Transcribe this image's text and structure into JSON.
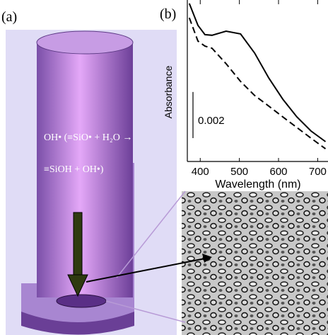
{
  "panel_labels": [
    "(a)",
    "(b)"
  ],
  "annotation": {
    "lines": [
      "OH• (≡SiO• + H₂O →",
      "≡SiOH + OH•)"
    ]
  },
  "chart_data": {
    "type": "line",
    "y_label": "Absorbance",
    "x_label": "Wavelength (nm)",
    "x": [
      372,
      394,
      412,
      430,
      466,
      503,
      539,
      575,
      611,
      647,
      683,
      720
    ],
    "series": [
      {
        "color": "#000000",
        "dash": "solid",
        "values": [
          0.00685,
          0.0059,
          0.0055,
          0.00547,
          0.00565,
          0.00553,
          0.0047,
          0.00362,
          0.0027,
          0.00193,
          0.00132,
          0.00086
        ]
      },
      {
        "color": "#000000",
        "dash": "dashed",
        "values": [
          0.00623,
          0.00522,
          0.005,
          0.00491,
          0.00424,
          0.00347,
          0.00286,
          0.0024,
          0.00193,
          0.00147,
          0.00101,
          0.00055
        ]
      }
    ],
    "xlim": [
      367,
      730
    ],
    "xticks": [
      400,
      500,
      600,
      700
    ],
    "ylim": [
      0,
      0.007
    ],
    "scale_bar": {
      "value": 0.002,
      "label": "0.002"
    }
  }
}
